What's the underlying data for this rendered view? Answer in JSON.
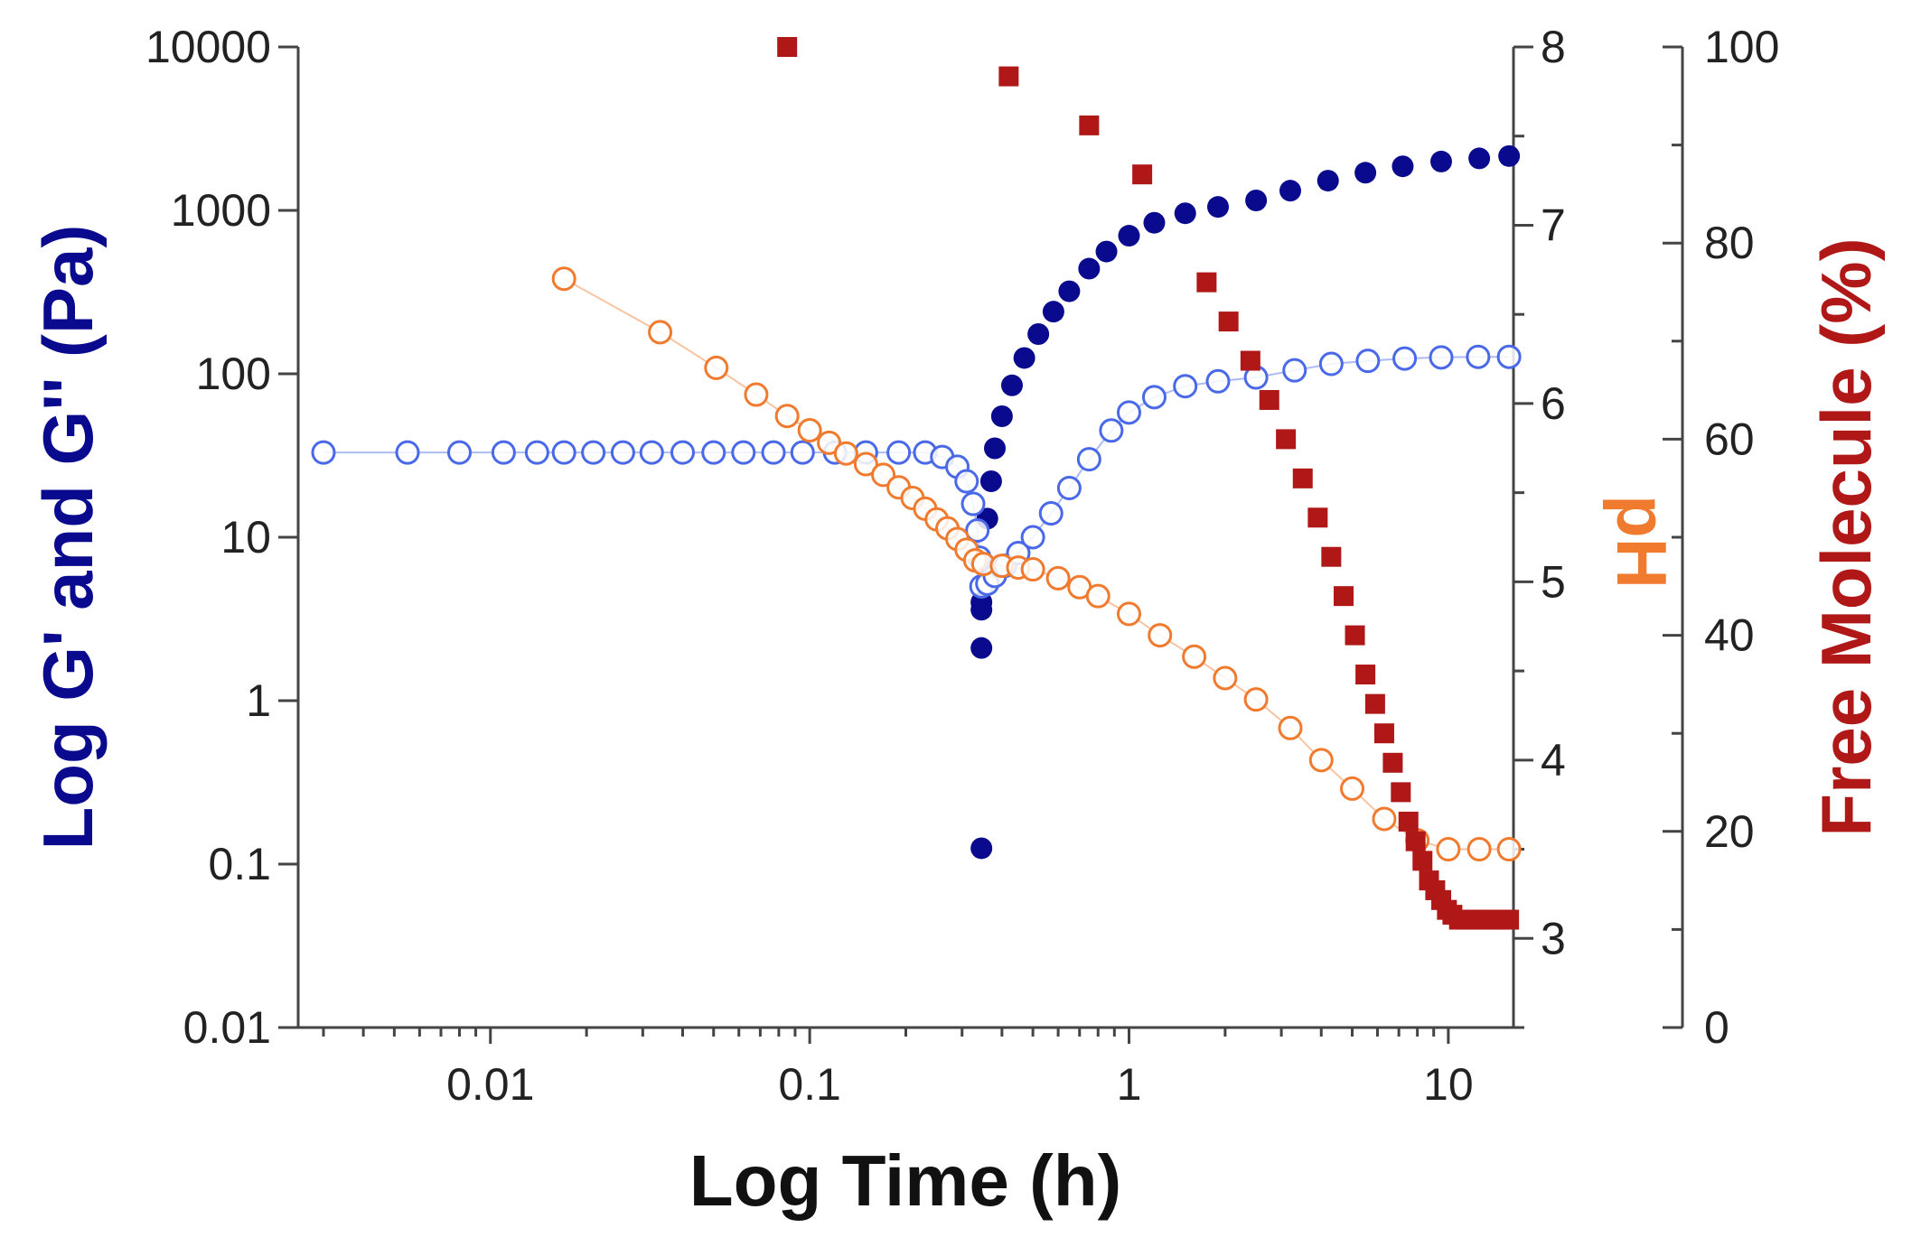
{
  "chart_data": {
    "type": "scatter",
    "xlabel": "Log Time (h)",
    "ylabel_left": "Log G' and G'' (Pa)",
    "ylabel_right1": "pH",
    "ylabel_right2": "Free Molecule (%)",
    "x_scale": "log",
    "y_scale_left": "log",
    "xlim": [
      0.0025,
      16
    ],
    "ylim_left": [
      0.01,
      10000
    ],
    "ylim_right1": [
      2.5,
      8
    ],
    "ylim_right2": [
      0,
      100
    ],
    "grid": false,
    "x_ticks": [
      {
        "value": 0.01,
        "label": "0.01"
      },
      {
        "value": 0.1,
        "label": "0.1"
      },
      {
        "value": 1,
        "label": "1"
      },
      {
        "value": 10,
        "label": "10"
      }
    ],
    "y_left_ticks": [
      {
        "value": 0.01,
        "label": "0.01"
      },
      {
        "value": 0.1,
        "label": "0.1"
      },
      {
        "value": 1,
        "label": "1"
      },
      {
        "value": 10,
        "label": "10"
      },
      {
        "value": 100,
        "label": "100"
      },
      {
        "value": 1000,
        "label": "1000"
      },
      {
        "value": 10000,
        "label": "10000"
      }
    ],
    "y_right1_ticks": [
      {
        "value": 3,
        "label": "3"
      },
      {
        "value": 4,
        "label": "4"
      },
      {
        "value": 5,
        "label": "5"
      },
      {
        "value": 6,
        "label": "6"
      },
      {
        "value": 7,
        "label": "7"
      },
      {
        "value": 8,
        "label": "8"
      }
    ],
    "y_right2_ticks": [
      {
        "value": 0,
        "label": "0"
      },
      {
        "value": 20,
        "label": "20"
      },
      {
        "value": 40,
        "label": "40"
      },
      {
        "value": 60,
        "label": "60"
      },
      {
        "value": 80,
        "label": "80"
      },
      {
        "value": 100,
        "label": "100"
      }
    ],
    "series": [
      {
        "axis": "left",
        "marker": "circle",
        "filled": true,
        "color": "#0a0a8f",
        "x": [
          0.345,
          0.35,
          0.36,
          0.37,
          0.38,
          0.4,
          0.43,
          0.47,
          0.52,
          0.58,
          0.65,
          0.75,
          0.85,
          1.0,
          1.2,
          1.5,
          1.9,
          2.5,
          3.2,
          4.2,
          5.5,
          7.2,
          9.5,
          12.5,
          15.5
        ],
        "y": [
          4,
          7,
          13,
          22,
          35,
          55,
          85,
          125,
          175,
          240,
          320,
          440,
          560,
          700,
          840,
          960,
          1050,
          1150,
          1320,
          1520,
          1700,
          1860,
          1990,
          2080,
          2150
        ]
      },
      {
        "axis": "left",
        "marker": "circle",
        "filled": true,
        "color": "#0a0a8f",
        "x": [
          0.345,
          0.345,
          0.345
        ],
        "y": [
          3.6,
          2.1,
          0.125
        ]
      },
      {
        "axis": "left",
        "marker": "circle",
        "filled": false,
        "color": "#4a69e8",
        "x": [
          0.003,
          0.0055,
          0.008,
          0.011,
          0.014,
          0.017,
          0.021,
          0.026,
          0.032,
          0.04,
          0.05,
          0.062,
          0.077,
          0.095,
          0.12,
          0.15,
          0.19,
          0.23,
          0.26,
          0.29,
          0.31,
          0.325,
          0.335,
          0.34,
          0.345,
          0.36,
          0.38,
          0.41,
          0.45,
          0.5,
          0.57,
          0.65,
          0.75,
          0.88,
          1.0,
          1.2,
          1.5,
          1.9,
          2.5,
          3.3,
          4.3,
          5.6,
          7.3,
          9.5,
          12.4,
          15.5
        ],
        "y": [
          33,
          33,
          33,
          33,
          33,
          33,
          33,
          33,
          33,
          33,
          33,
          33,
          33,
          33,
          33,
          33,
          33,
          33,
          31,
          27,
          22,
          16,
          11,
          7.5,
          5,
          5.2,
          5.8,
          6.7,
          8,
          10,
          14,
          20,
          30,
          45,
          58,
          72,
          84,
          90,
          95,
          105,
          115,
          120,
          124,
          126,
          127,
          127
        ]
      },
      {
        "axis": "right1",
        "marker": "circle",
        "filled": false,
        "color": "#f07a2e",
        "x": [
          0.017,
          0.034,
          0.051,
          0.068,
          0.085,
          0.1,
          0.115,
          0.13,
          0.15,
          0.17,
          0.19,
          0.21,
          0.23,
          0.25,
          0.27,
          0.29,
          0.31,
          0.33,
          0.35,
          0.4,
          0.45,
          0.5,
          0.6,
          0.7,
          0.8,
          1.0,
          1.25,
          1.6,
          2.0,
          2.5,
          3.2,
          4.0,
          5.0,
          6.3,
          8.0,
          10,
          12.5,
          15.5
        ],
        "y": [
          6.7,
          6.4,
          6.2,
          6.05,
          5.93,
          5.85,
          5.78,
          5.72,
          5.66,
          5.6,
          5.53,
          5.47,
          5.41,
          5.35,
          5.3,
          5.24,
          5.18,
          5.12,
          5.1,
          5.09,
          5.08,
          5.07,
          5.02,
          4.97,
          4.92,
          4.82,
          4.7,
          4.58,
          4.46,
          4.34,
          4.18,
          4.0,
          3.84,
          3.67,
          3.55,
          3.5,
          3.5,
          3.5
        ]
      },
      {
        "axis": "right2",
        "marker": "square",
        "filled": true,
        "color": "#b01818",
        "x": [
          0.085,
          0.42,
          0.75,
          1.1,
          1.75,
          2.05,
          2.4,
          2.75,
          3.1,
          3.5,
          3.9,
          4.3,
          4.7,
          5.1,
          5.5,
          5.9,
          6.3,
          6.7,
          7.1,
          7.5,
          7.9,
          8.3,
          8.7,
          9.1,
          9.5,
          9.9,
          10.3,
          10.8,
          11.5,
          12.5,
          13.5,
          14.5,
          15.5
        ],
        "y": [
          100,
          97,
          92,
          87,
          76,
          72,
          68,
          64,
          60,
          56,
          52,
          48,
          44,
          40,
          36,
          33,
          30,
          27,
          24,
          21,
          19,
          17,
          15,
          14,
          13,
          12,
          11.5,
          11,
          11,
          11,
          11,
          11,
          11
        ]
      }
    ]
  }
}
